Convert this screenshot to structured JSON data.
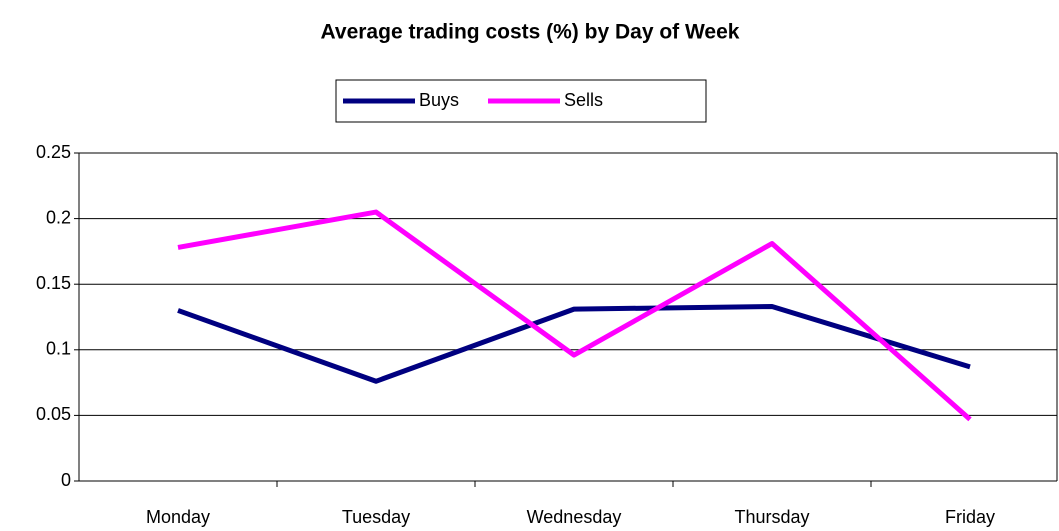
{
  "chart_data": {
    "type": "line",
    "title": "Average trading costs (%) by Day of Week",
    "categories": [
      "Monday",
      "Tuesday",
      "Wednesday",
      "Thursday",
      "Friday"
    ],
    "series": [
      {
        "name": "Buys",
        "color": "#000080",
        "values": [
          0.13,
          0.076,
          0.131,
          0.133,
          0.087
        ]
      },
      {
        "name": "Sells",
        "color": "#ff00ff",
        "values": [
          0.178,
          0.205,
          0.096,
          0.181,
          0.047
        ]
      }
    ],
    "ylim": [
      0,
      0.25
    ],
    "yticks": [
      0,
      0.05,
      0.1,
      0.15,
      0.2,
      0.25
    ],
    "grid": true,
    "legend": "top"
  }
}
